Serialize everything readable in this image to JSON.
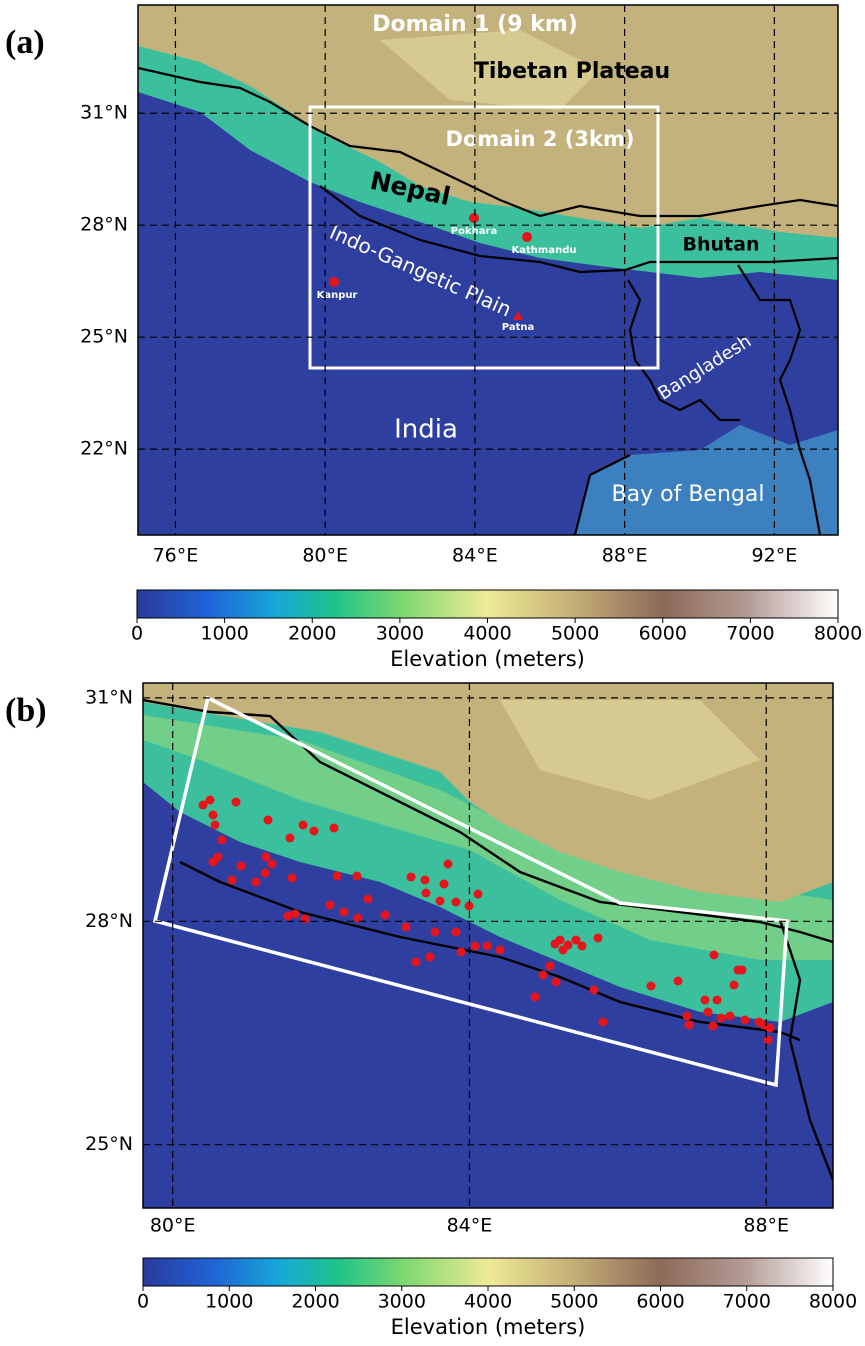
{
  "panels": [
    {
      "label": "(a)",
      "xlim": [
        75,
        93.7
      ],
      "ylim": [
        19.7,
        33.9
      ],
      "xticks": [
        {
          "value": 76,
          "label": "76°E"
        },
        {
          "value": 80,
          "label": "80°E"
        },
        {
          "value": 84,
          "label": "84°E"
        },
        {
          "value": 88,
          "label": "88°E"
        },
        {
          "value": 92,
          "label": "92°E"
        }
      ],
      "yticks": [
        {
          "value": 22,
          "label": "22°N"
        },
        {
          "value": 25,
          "label": "25°N"
        },
        {
          "value": 28,
          "label": "28°N"
        },
        {
          "value": 31,
          "label": "31°N"
        }
      ],
      "places": [
        "Domain 1 (9 km)",
        "Tibetan Plateau",
        "Domain 2 (3km)",
        "Nepal",
        "Pokhara",
        "Kathmandu",
        "Bhutan",
        "Indo-Gangetic Plain",
        "Kanpur",
        "Patna",
        "Bangladesh",
        "India",
        "Bay of Bengal"
      ],
      "colorbar": {
        "label": "Elevation (meters)",
        "lim": [
          0,
          8000
        ],
        "ticks": [
          0,
          1000,
          2000,
          3000,
          4000,
          5000,
          6000,
          7000,
          8000
        ]
      }
    },
    {
      "label": "(b)",
      "xlim": [
        79.6,
        88.9
      ],
      "ylim": [
        24.15,
        31.2
      ],
      "xticks": [
        {
          "value": 80,
          "label": "80°E"
        },
        {
          "value": 84,
          "label": "84°E"
        },
        {
          "value": 88,
          "label": "88°E"
        }
      ],
      "yticks": [
        {
          "value": 25,
          "label": "25°N"
        },
        {
          "value": 28,
          "label": "28°N"
        },
        {
          "value": 31,
          "label": "31°N"
        }
      ],
      "colorbar": {
        "label": "Elevation (meters)",
        "lim": [
          0,
          8000
        ],
        "ticks": [
          0,
          1000,
          2000,
          3000,
          4000,
          5000,
          6000,
          7000,
          8000
        ]
      }
    }
  ]
}
